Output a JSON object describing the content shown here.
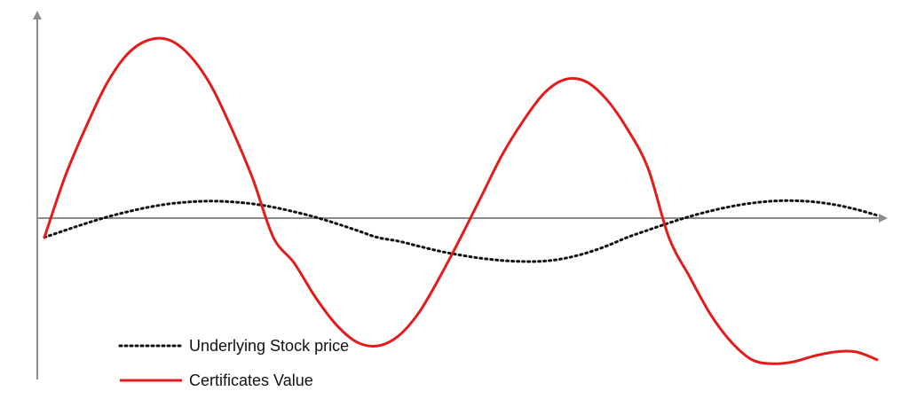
{
  "chart_data": {
    "type": "line",
    "x": [
      0,
      0.5,
      1,
      1.5,
      2,
      2.5,
      3,
      3.5,
      4,
      4.5,
      5,
      5.5,
      6,
      6.5,
      7,
      7.5,
      8,
      8.5,
      9,
      9.5,
      10,
      10.5,
      11,
      11.5,
      12,
      12.5,
      13,
      13.5,
      14,
      14.5,
      15,
      15.5,
      16,
      16.5,
      17,
      17.5,
      18,
      18.5,
      19,
      19.5,
      20
    ],
    "series": [
      {
        "name": "Underlying Stock price",
        "style": "dotted",
        "color": "#111111",
        "values": [
          0,
          0.036,
          0.071,
          0.103,
          0.13,
          0.153,
          0.17,
          0.18,
          0.184,
          0.18,
          0.17,
          0.153,
          0.13,
          0.103,
          0.071,
          0.036,
          0,
          -0.019,
          -0.045,
          -0.07,
          -0.09,
          -0.106,
          -0.117,
          -0.122,
          -0.12,
          -0.106,
          -0.08,
          -0.044,
          0,
          0.037,
          0.073,
          0.106,
          0.134,
          0.157,
          0.174,
          0.184,
          0.186,
          0.18,
          0.165,
          0.142,
          0.112
        ]
      },
      {
        "name": "Certificates Value",
        "style": "solid",
        "color": "#e31b1b",
        "values": [
          0,
          0.31,
          0.56,
          0.78,
          0.93,
          1.0,
          1.0,
          0.92,
          0.77,
          0.55,
          0.3,
          0.0,
          -0.13,
          -0.3,
          -0.44,
          -0.53,
          -0.55,
          -0.5,
          -0.38,
          -0.2,
          0.0,
          0.21,
          0.42,
          0.59,
          0.73,
          0.8,
          0.79,
          0.7,
          0.55,
          0.35,
          0.0,
          -0.2,
          -0.39,
          -0.53,
          -0.62,
          -0.64,
          -0.63,
          -0.6,
          -0.58,
          -0.58,
          -0.62
        ]
      }
    ],
    "xlabel": "",
    "ylabel": "",
    "xlim": [
      0,
      20
    ],
    "ylim": [
      -0.72,
      1.14
    ],
    "grid": false,
    "legend": "bottom-left"
  }
}
